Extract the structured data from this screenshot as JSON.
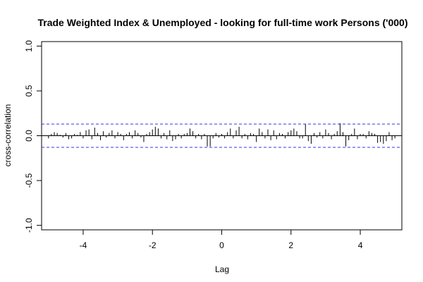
{
  "chart_data": {
    "type": "ccf",
    "title": "Trade Weighted Index & Unemployed - looking for full-time work Persons ('000)",
    "xlabel": "Lag",
    "ylabel": "cross-correlation",
    "xlim": [
      -5.2,
      5.2
    ],
    "ylim": [
      -1.05,
      1.05
    ],
    "xticks": [
      -4,
      -2,
      0,
      2,
      4
    ],
    "xtick_labels": [
      "-4",
      "-2",
      "0",
      "2",
      "4"
    ],
    "yticks": [
      -1.0,
      -0.5,
      0.0,
      0.5,
      1.0
    ],
    "ytick_labels": [
      "-1.0",
      "-0.5",
      "0.0",
      "0.5",
      "1.0"
    ],
    "confidence_band": 0.13,
    "colors": {
      "bars": "#000000",
      "zero_line": "#000000",
      "confidence": "#3333ee",
      "frame": "#000000"
    },
    "lags": [
      -5.0,
      -4.917,
      -4.833,
      -4.75,
      -4.667,
      -4.583,
      -4.5,
      -4.417,
      -4.333,
      -4.25,
      -4.167,
      -4.083,
      -4.0,
      -3.917,
      -3.833,
      -3.75,
      -3.667,
      -3.583,
      -3.5,
      -3.417,
      -3.333,
      -3.25,
      -3.167,
      -3.083,
      -3.0,
      -2.917,
      -2.833,
      -2.75,
      -2.667,
      -2.583,
      -2.5,
      -2.417,
      -2.333,
      -2.25,
      -2.167,
      -2.083,
      -2.0,
      -1.917,
      -1.833,
      -1.75,
      -1.667,
      -1.583,
      -1.5,
      -1.417,
      -1.333,
      -1.25,
      -1.167,
      -1.083,
      -1.0,
      -0.917,
      -0.833,
      -0.75,
      -0.667,
      -0.583,
      -0.5,
      -0.417,
      -0.333,
      -0.25,
      -0.167,
      -0.083,
      0.0,
      0.083,
      0.167,
      0.25,
      0.333,
      0.417,
      0.5,
      0.583,
      0.667,
      0.75,
      0.833,
      0.917,
      1.0,
      1.083,
      1.167,
      1.25,
      1.333,
      1.417,
      1.5,
      1.583,
      1.667,
      1.75,
      1.833,
      1.917,
      2.0,
      2.083,
      2.167,
      2.25,
      2.333,
      2.417,
      2.5,
      2.583,
      2.667,
      2.75,
      2.833,
      2.917,
      3.0,
      3.083,
      3.167,
      3.25,
      3.333,
      3.417,
      3.5,
      3.583,
      3.667,
      3.75,
      3.833,
      3.917,
      4.0,
      4.083,
      4.167,
      4.25,
      4.333,
      4.417,
      4.5,
      4.583,
      4.667,
      4.75,
      4.833,
      4.917,
      5.0
    ],
    "values": [
      -0.03,
      0.02,
      0.04,
      0.03,
      0.01,
      -0.02,
      0.03,
      -0.04,
      -0.03,
      0.02,
      0.01,
      0.04,
      -0.03,
      0.06,
      0.07,
      -0.04,
      0.09,
      0.03,
      -0.05,
      0.05,
      -0.02,
      0.03,
      0.06,
      -0.03,
      0.04,
      0.02,
      -0.05,
      0.02,
      0.04,
      -0.03,
      0.06,
      0.03,
      -0.02,
      -0.07,
      0.02,
      0.04,
      0.07,
      0.1,
      0.08,
      -0.03,
      0.03,
      -0.04,
      0.06,
      -0.06,
      -0.04,
      0.02,
      -0.03,
      0.02,
      0.03,
      0.08,
      0.05,
      -0.03,
      0.02,
      -0.04,
      0.02,
      -0.12,
      -0.12,
      -0.03,
      0.03,
      -0.02,
      0.02,
      -0.03,
      0.04,
      0.08,
      -0.03,
      0.06,
      0.1,
      -0.03,
      0.02,
      -0.04,
      0.03,
      0.02,
      -0.07,
      0.08,
      0.04,
      -0.03,
      0.07,
      -0.05,
      0.06,
      -0.04,
      0.03,
      0.02,
      -0.03,
      0.04,
      0.06,
      0.08,
      0.05,
      -0.03,
      -0.03,
      0.13,
      -0.06,
      -0.09,
      0.03,
      -0.02,
      0.04,
      -0.03,
      0.07,
      0.03,
      -0.04,
      0.02,
      0.05,
      0.14,
      0.04,
      -0.12,
      -0.05,
      0.02,
      0.08,
      -0.04,
      0.02,
      0.02,
      -0.03,
      0.05,
      0.03,
      0.02,
      -0.08,
      -0.07,
      -0.09,
      -0.06,
      0.04,
      -0.05,
      -0.03
    ]
  }
}
